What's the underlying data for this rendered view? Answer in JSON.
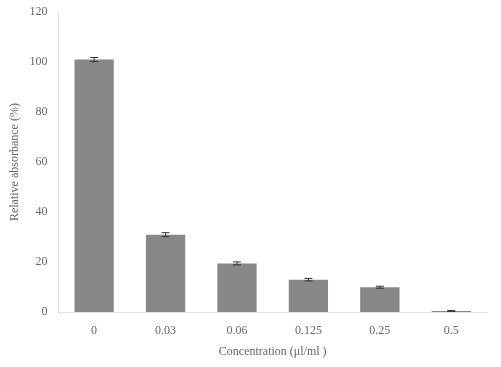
{
  "chart_data": {
    "type": "bar",
    "categories": [
      "0",
      "0.03",
      "0.06",
      "0.125",
      "0.25",
      "0.5"
    ],
    "values": [
      101.0,
      31.0,
      19.5,
      13.0,
      10.0,
      0.5
    ],
    "errors": [
      0.8,
      0.8,
      0.6,
      0.5,
      0.4,
      0.2
    ],
    "color": "#888888",
    "xlabel": "Concentration (μl/ml )",
    "ylabel": "Relative absorbance (%)",
    "ylim": [
      0,
      120
    ],
    "yticks": [
      0,
      20,
      40,
      60,
      80,
      100,
      120
    ],
    "grid": false
  }
}
